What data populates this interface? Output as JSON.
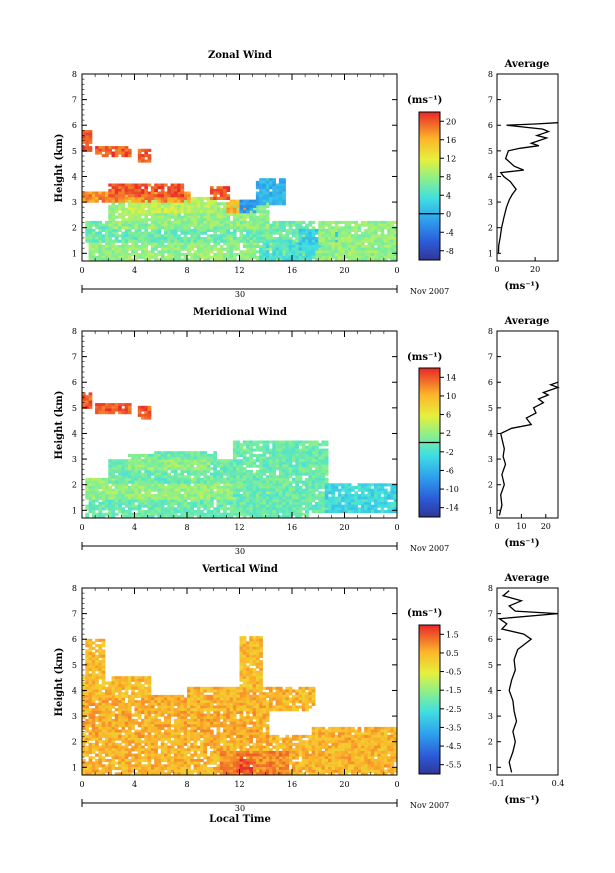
{
  "chart_data": [
    {
      "type": "heatmap",
      "title": "Zonal Wind",
      "ylabel": "Height (km)",
      "y_ticks": [
        1,
        2,
        3,
        4,
        5,
        6,
        7,
        8
      ],
      "ylim": [
        0.7,
        8
      ],
      "x_ticks": [
        "0",
        "4",
        "8",
        "12",
        "16",
        "20",
        "0"
      ],
      "xlim": [
        0,
        24
      ],
      "date_day": "30",
      "date_label": "Nov 2007",
      "colorbar": {
        "unit": "(ms⁻¹)",
        "ticks": [
          20,
          16,
          12,
          8,
          4,
          0,
          -4,
          -8
        ],
        "range": [
          -10,
          22
        ],
        "contour_value": 0
      },
      "average_profile": {
        "title": "Average",
        "xlabel": "(ms⁻¹)",
        "x_ticks": [
          "0",
          "20"
        ],
        "xlim": [
          0,
          32
        ],
        "points": [
          [
            1,
            0.8
          ],
          [
            1.3,
            0.9
          ],
          [
            1.6,
            1.6
          ],
          [
            2.0,
            2.4
          ],
          [
            2.4,
            3.6
          ],
          [
            2.8,
            5.0
          ],
          [
            3.1,
            6.5
          ],
          [
            3.3,
            8.0
          ],
          [
            3.5,
            10.0
          ],
          [
            3.8,
            7.0
          ],
          [
            4.0,
            3.5
          ],
          [
            4.15,
            2.0
          ],
          [
            4.25,
            14.0
          ],
          [
            4.4,
            9.0
          ],
          [
            4.7,
            4.5
          ],
          [
            5.0,
            6.0
          ],
          [
            5.1,
            12.0
          ],
          [
            5.2,
            22.0
          ],
          [
            5.3,
            18.0
          ],
          [
            5.5,
            26.0
          ],
          [
            5.6,
            21.0
          ],
          [
            5.75,
            27.0
          ],
          [
            5.85,
            24.0
          ],
          [
            6.0,
            5.0
          ],
          [
            6.05,
            20.0
          ],
          [
            6.1,
            32.0
          ]
        ]
      },
      "patches": [
        {
          "value": 8,
          "t": [
            0.5,
            23.8
          ],
          "h": [
            0.75,
            1.6
          ]
        },
        {
          "value": 6,
          "t": [
            0.3,
            17.5
          ],
          "h": [
            1.5,
            2.2
          ]
        },
        {
          "value": 8,
          "t": [
            2.0,
            14.0
          ],
          "h": [
            2.0,
            2.9
          ]
        },
        {
          "value": 10,
          "t": [
            3.5,
            10.0
          ],
          "h": [
            2.6,
            3.1
          ]
        },
        {
          "value": 4,
          "t": [
            13.5,
            17.5
          ],
          "h": [
            0.8,
            1.5
          ]
        },
        {
          "value": 2,
          "t": [
            16.5,
            19.5
          ],
          "h": [
            1.2,
            1.9
          ]
        },
        {
          "value": 8,
          "t": [
            18.0,
            23.8
          ],
          "h": [
            1.0,
            2.2
          ]
        },
        {
          "value": 18,
          "t": [
            0.2,
            8.0
          ],
          "h": [
            3.0,
            3.4
          ]
        },
        {
          "value": 20,
          "t": [
            2.0,
            7.5
          ],
          "h": [
            3.3,
            3.7
          ]
        },
        {
          "value": 20,
          "t": [
            9.8,
            11.2
          ],
          "h": [
            3.2,
            3.6
          ]
        },
        {
          "value": 16,
          "t": [
            11.0,
            12.5
          ],
          "h": [
            2.6,
            3.0
          ]
        },
        {
          "value": 20,
          "t": [
            1.0,
            3.5
          ],
          "h": [
            4.8,
            5.1
          ]
        },
        {
          "value": 20,
          "t": [
            0.1,
            0.7
          ],
          "h": [
            5.0,
            5.8
          ]
        },
        {
          "value": 20,
          "t": [
            4.3,
            5.2
          ],
          "h": [
            4.6,
            5.0
          ]
        },
        {
          "value": 0,
          "t": [
            13.3,
            15.3
          ],
          "h": [
            2.9,
            3.9
          ]
        },
        {
          "value": -2,
          "t": [
            12.2,
            13.2
          ],
          "h": [
            2.6,
            3.0
          ]
        }
      ]
    },
    {
      "type": "heatmap",
      "title": "Meridional Wind",
      "ylabel": "Height (km)",
      "y_ticks": [
        1,
        2,
        3,
        4,
        5,
        6,
        7,
        8
      ],
      "ylim": [
        0.7,
        8
      ],
      "x_ticks": [
        "0",
        "4",
        "8",
        "12",
        "16",
        "20",
        "0"
      ],
      "xlim": [
        0,
        24
      ],
      "date_day": "30",
      "date_label": "Nov 2007",
      "colorbar": {
        "unit": "(ms⁻¹)",
        "ticks": [
          14,
          10,
          6,
          2,
          -2,
          -6,
          -10,
          -14
        ],
        "range": [
          -16,
          16
        ],
        "contour_value": 0
      },
      "average_profile": {
        "title": "Average",
        "xlabel": "(ms⁻¹)",
        "x_ticks": [
          "0",
          "10",
          "20"
        ],
        "xlim": [
          0,
          25
        ],
        "points": [
          [
            0.8,
            1.0
          ],
          [
            1.2,
            2.0
          ],
          [
            1.6,
            1.5
          ],
          [
            2.0,
            3.0
          ],
          [
            2.4,
            2.0
          ],
          [
            2.8,
            3.5
          ],
          [
            3.1,
            2.5
          ],
          [
            3.4,
            3.0
          ],
          [
            3.8,
            2.0
          ],
          [
            4.0,
            1.5
          ],
          [
            4.2,
            6.0
          ],
          [
            4.35,
            14.0
          ],
          [
            4.6,
            12.0
          ],
          [
            4.8,
            16.0
          ],
          [
            5.0,
            15.0
          ],
          [
            5.2,
            19.0
          ],
          [
            5.35,
            17.0
          ],
          [
            5.5,
            21.0
          ],
          [
            5.6,
            19.0
          ],
          [
            5.8,
            25.0
          ],
          [
            5.9,
            22.0
          ],
          [
            6.0,
            25.0
          ]
        ]
      },
      "patches": [
        {
          "value": 0,
          "t": [
            0.3,
            17.0
          ],
          "h": [
            0.75,
            1.6
          ]
        },
        {
          "value": 2,
          "t": [
            0.3,
            15.5
          ],
          "h": [
            1.5,
            2.2
          ]
        },
        {
          "value": 0,
          "t": [
            2.0,
            12.0
          ],
          "h": [
            2.1,
            2.9
          ]
        },
        {
          "value": 2,
          "t": [
            3.5,
            9.5
          ],
          "h": [
            2.6,
            3.2
          ]
        },
        {
          "value": 0,
          "t": [
            5.0,
            10.0
          ],
          "h": [
            3.0,
            3.3
          ]
        },
        {
          "value": 0,
          "t": [
            11.5,
            18.5
          ],
          "h": [
            1.0,
            3.7
          ]
        },
        {
          "value": -3,
          "t": [
            18.5,
            23.8
          ],
          "h": [
            1.0,
            2.0
          ]
        },
        {
          "value": 14,
          "t": [
            1.0,
            3.5
          ],
          "h": [
            4.8,
            5.1
          ]
        },
        {
          "value": 14,
          "t": [
            0.1,
            0.7
          ],
          "h": [
            5.0,
            5.5
          ]
        },
        {
          "value": 14,
          "t": [
            4.3,
            5.2
          ],
          "h": [
            4.6,
            5.0
          ]
        }
      ]
    },
    {
      "type": "heatmap",
      "title": "Vertical Wind",
      "ylabel": "Height (km)",
      "xlabel": "Local Time",
      "y_ticks": [
        1,
        2,
        3,
        4,
        5,
        6,
        7,
        8
      ],
      "ylim": [
        0.7,
        8
      ],
      "x_ticks": [
        "0",
        "4",
        "8",
        "12",
        "16",
        "20",
        "0"
      ],
      "xlim": [
        0,
        24
      ],
      "date_day": "30",
      "date_label": "Nov 2007",
      "colorbar": {
        "unit": "(ms⁻¹)",
        "ticks": [
          1.5,
          0.5,
          -0.5,
          -1.5,
          -2.5,
          -3.5,
          -4.5,
          -5.5
        ],
        "range": [
          -6,
          2
        ],
        "contour_value": null
      },
      "average_profile": {
        "title": "Average",
        "xlabel": "(ms⁻¹)",
        "x_ticks": [
          "-0.1",
          "0.4"
        ],
        "xlim": [
          -0.1,
          0.4
        ],
        "points": [
          [
            0.8,
            0.02
          ],
          [
            1.2,
            0.0
          ],
          [
            1.6,
            0.03
          ],
          [
            2.0,
            0.05
          ],
          [
            2.4,
            0.03
          ],
          [
            2.8,
            0.06
          ],
          [
            3.2,
            0.04
          ],
          [
            3.6,
            0.03
          ],
          [
            4.0,
            0.0
          ],
          [
            4.4,
            0.02
          ],
          [
            4.8,
            0.05
          ],
          [
            5.2,
            0.04
          ],
          [
            5.6,
            0.07
          ],
          [
            6.0,
            0.18
          ],
          [
            6.2,
            0.12
          ],
          [
            6.4,
            -0.06
          ],
          [
            6.6,
            -0.02
          ],
          [
            6.8,
            -0.08
          ],
          [
            7.0,
            0.4
          ],
          [
            7.1,
            0.05
          ],
          [
            7.3,
            0.0
          ],
          [
            7.5,
            0.1
          ],
          [
            7.7,
            -0.05
          ],
          [
            7.9,
            0.0
          ]
        ]
      },
      "patches": [
        {
          "value": 0.5,
          "t": [
            0.2,
            23.5
          ],
          "h": [
            0.75,
            2.2
          ]
        },
        {
          "value": 0.6,
          "t": [
            0.2,
            14.0
          ],
          "h": [
            2.2,
            3.8
          ]
        },
        {
          "value": 0.4,
          "t": [
            0.2,
            5.0
          ],
          "h": [
            3.8,
            4.5
          ]
        },
        {
          "value": 0.5,
          "t": [
            8.0,
            17.5
          ],
          "h": [
            3.3,
            4.1
          ]
        },
        {
          "value": 0.5,
          "t": [
            17.5,
            23.8
          ],
          "h": [
            0.9,
            2.5
          ]
        },
        {
          "value": 0.4,
          "t": [
            0.3,
            1.5
          ],
          "h": [
            4.5,
            6.0
          ]
        },
        {
          "value": 0.4,
          "t": [
            12.0,
            13.5
          ],
          "h": [
            4.2,
            6.1
          ]
        },
        {
          "value": 1.0,
          "t": [
            10.5,
            15.5
          ],
          "h": [
            0.8,
            1.6
          ]
        },
        {
          "value": 1.6,
          "t": [
            11.8,
            12.8
          ],
          "h": [
            0.9,
            1.3
          ]
        }
      ]
    }
  ]
}
